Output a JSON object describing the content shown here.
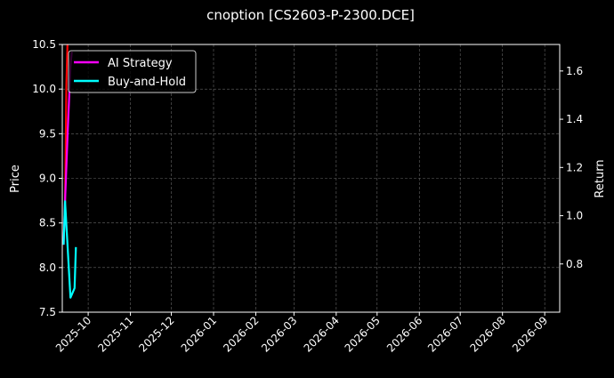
{
  "chart_data": {
    "type": "line",
    "title": "cnoption [CS2603-P-2300.DCE]",
    "xlabel": "",
    "ylabel_left": "Price",
    "ylabel_right": "Return",
    "xlim": [
      "2025-09-12",
      "2026-09-12"
    ],
    "ylim_left": [
      7.5,
      10.5
    ],
    "ylim_right": [
      0.6,
      1.71
    ],
    "x_ticks": [
      "2025-10",
      "2025-11",
      "2025-12",
      "2026-01",
      "2026-02",
      "2026-03",
      "2026-04",
      "2026-05",
      "2026-06",
      "2026-07",
      "2026-08",
      "2026-09"
    ],
    "y_ticks_left": [
      7.5,
      8.0,
      8.5,
      9.0,
      9.5,
      10.0,
      10.5
    ],
    "y_ticks_right": [
      0.8,
      1.0,
      1.2,
      1.4,
      1.6
    ],
    "grid": true,
    "legend_position": "top-left",
    "series": [
      {
        "axis": "left",
        "color": "#ff0000",
        "points": [
          [
            "2025-09-14",
            8.72
          ],
          [
            "2025-09-15",
            10.05
          ],
          [
            "2025-09-16",
            10.6
          ]
        ]
      },
      {
        "name": "AI Strategy",
        "axis": "right",
        "color": "#ff00ff",
        "points": [
          [
            "2025-09-13",
            0.88
          ],
          [
            "2025-09-14",
            1.06
          ],
          [
            "2025-09-16",
            1.35
          ],
          [
            "2025-09-18",
            1.62
          ],
          [
            "2025-09-19",
            1.68
          ]
        ]
      },
      {
        "name": "Buy-and-Hold",
        "axis": "right",
        "color": "#00ffff",
        "points": [
          [
            "2025-09-13",
            0.88
          ],
          [
            "2025-09-14",
            1.06
          ],
          [
            "2025-09-18",
            0.66
          ],
          [
            "2025-09-21",
            0.7
          ],
          [
            "2025-09-22",
            0.87
          ]
        ]
      }
    ]
  }
}
